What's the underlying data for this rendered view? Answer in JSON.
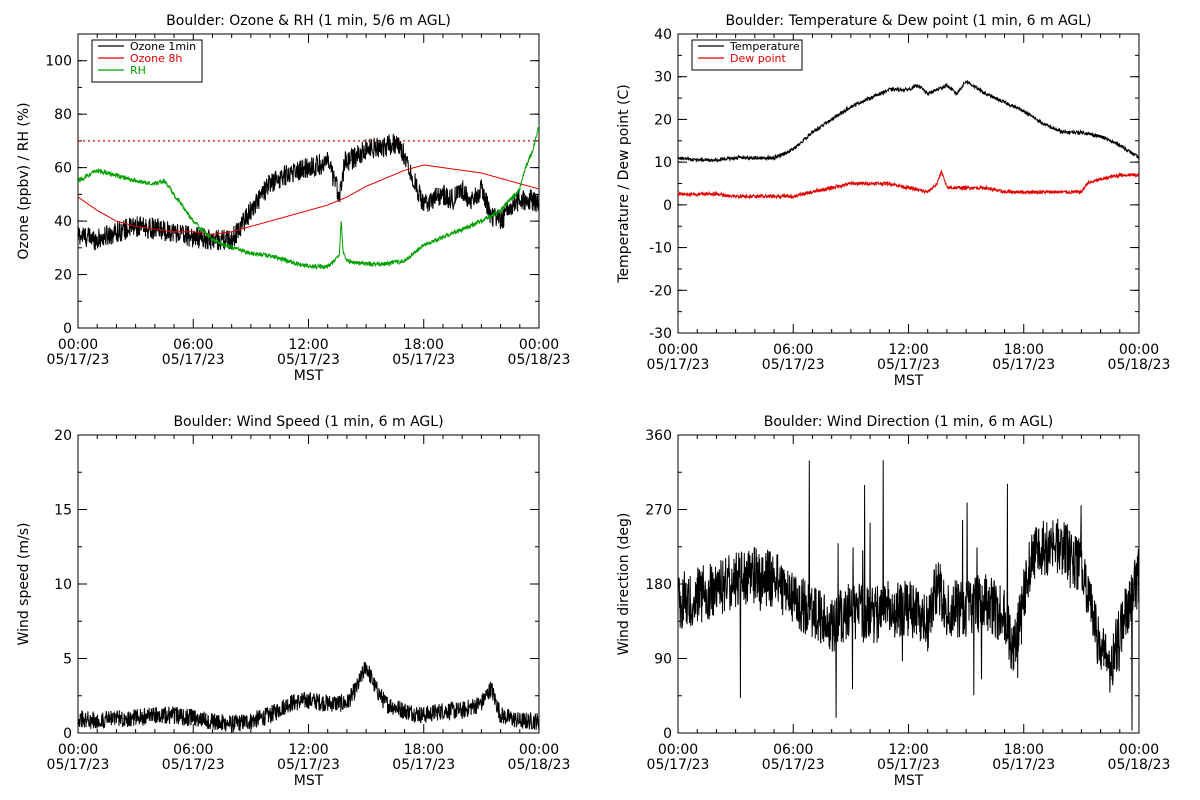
{
  "chart_data": [
    {
      "type": "line",
      "title": "Boulder: Ozone & RH (1 min, 5/6 m AGL)",
      "xlabel": "MST",
      "ylabel": "Ozone (ppbv) / RH (%)",
      "xlim_hours": [
        0,
        24
      ],
      "ylim": [
        0,
        110
      ],
      "yticks": [
        0,
        20,
        40,
        60,
        80,
        100
      ],
      "xtick_labels": [
        [
          "00:00",
          "05/17/23"
        ],
        [
          "06:00",
          "05/17/23"
        ],
        [
          "12:00",
          "05/17/23"
        ],
        [
          "18:00",
          "05/17/23"
        ],
        [
          "00:00",
          "05/18/23"
        ]
      ],
      "legend_position": "top-left",
      "reference_line": {
        "y": 70,
        "color": "#e00000",
        "style": "dotted"
      },
      "series": [
        {
          "name": "Ozone 1min",
          "color": "#000000",
          "noise": 4,
          "points": [
            [
              0,
              35
            ],
            [
              1,
              33
            ],
            [
              2,
              36
            ],
            [
              3,
              38
            ],
            [
              4,
              37
            ],
            [
              5,
              36
            ],
            [
              6,
              34
            ],
            [
              7,
              33
            ],
            [
              8,
              33
            ],
            [
              9,
              44
            ],
            [
              10,
              54
            ],
            [
              11,
              58
            ],
            [
              12,
              60
            ],
            [
              13,
              62
            ],
            [
              13.6,
              50
            ],
            [
              13.9,
              62
            ],
            [
              14.5,
              64
            ],
            [
              15,
              67
            ],
            [
              16,
              68
            ],
            [
              16.5,
              69
            ],
            [
              17,
              65
            ],
            [
              17.5,
              55
            ],
            [
              18,
              46
            ],
            [
              18.5,
              48
            ],
            [
              19,
              50
            ],
            [
              19.5,
              48
            ],
            [
              20,
              52
            ],
            [
              20.5,
              47
            ],
            [
              21,
              52
            ],
            [
              21.5,
              42
            ],
            [
              22,
              40
            ],
            [
              22.5,
              45
            ],
            [
              23,
              48
            ],
            [
              23.5,
              48
            ],
            [
              24,
              47
            ]
          ]
        },
        {
          "name": "Ozone 8h",
          "color": "#e00000",
          "noise": 0,
          "points": [
            [
              0,
              49
            ],
            [
              1,
              44
            ],
            [
              2,
              40
            ],
            [
              3,
              38
            ],
            [
              4,
              37
            ],
            [
              5,
              36
            ],
            [
              6,
              36
            ],
            [
              7,
              35
            ],
            [
              8,
              36
            ],
            [
              9,
              38
            ],
            [
              10,
              40
            ],
            [
              11,
              42
            ],
            [
              12,
              44
            ],
            [
              13,
              46
            ],
            [
              14,
              49
            ],
            [
              15,
              53
            ],
            [
              16,
              56
            ],
            [
              17,
              59
            ],
            [
              18,
              61
            ],
            [
              19,
              60
            ],
            [
              20,
              59
            ],
            [
              21,
              58
            ],
            [
              22,
              56
            ],
            [
              23,
              54
            ],
            [
              24,
              52
            ]
          ]
        },
        {
          "name": "RH",
          "color": "#00a000",
          "noise": 0.8,
          "points": [
            [
              0,
              55
            ],
            [
              0.5,
              57
            ],
            [
              1,
              59
            ],
            [
              2,
              57
            ],
            [
              3,
              55
            ],
            [
              4,
              54
            ],
            [
              4.5,
              55
            ],
            [
              5,
              50
            ],
            [
              6,
              40
            ],
            [
              7,
              33
            ],
            [
              8,
              30
            ],
            [
              9,
              28
            ],
            [
              10,
              27
            ],
            [
              11,
              25
            ],
            [
              12,
              23
            ],
            [
              13,
              23
            ],
            [
              13.6,
              27
            ],
            [
              13.7,
              40
            ],
            [
              13.8,
              29
            ],
            [
              14,
              25
            ],
            [
              15,
              24
            ],
            [
              16,
              24
            ],
            [
              17,
              25
            ],
            [
              17.5,
              28
            ],
            [
              18,
              31
            ],
            [
              19,
              34
            ],
            [
              20,
              37
            ],
            [
              21,
              40
            ],
            [
              21.5,
              42
            ],
            [
              22,
              44
            ],
            [
              22.5,
              48
            ],
            [
              23,
              52
            ],
            [
              23.3,
              60
            ],
            [
              23.7,
              67
            ],
            [
              24,
              76
            ]
          ]
        }
      ]
    },
    {
      "type": "line",
      "title": "Boulder: Temperature & Dew point (1 min, 6 m AGL)",
      "xlabel": "MST",
      "ylabel": "Temperature / Dew point (C)",
      "xlim_hours": [
        0,
        24
      ],
      "ylim": [
        -30,
        40
      ],
      "yticks": [
        -30,
        -20,
        -10,
        0,
        10,
        20,
        30,
        40
      ],
      "xtick_labels": [
        [
          "00:00",
          "05/17/23"
        ],
        [
          "06:00",
          "05/17/23"
        ],
        [
          "12:00",
          "05/17/23"
        ],
        [
          "18:00",
          "05/17/23"
        ],
        [
          "00:00",
          "05/18/23"
        ]
      ],
      "legend_position": "top-left",
      "series": [
        {
          "name": "Temperature",
          "color": "#000000",
          "noise": 0.4,
          "points": [
            [
              0,
              11
            ],
            [
              1,
              10.5
            ],
            [
              2,
              10.5
            ],
            [
              3,
              11
            ],
            [
              4,
              11
            ],
            [
              5,
              11
            ],
            [
              6,
              13
            ],
            [
              7,
              17
            ],
            [
              8,
              20
            ],
            [
              9,
              23
            ],
            [
              10,
              25
            ],
            [
              11,
              27
            ],
            [
              12,
              27
            ],
            [
              12.5,
              28
            ],
            [
              13,
              26
            ],
            [
              13.5,
              27
            ],
            [
              14,
              28
            ],
            [
              14.5,
              26
            ],
            [
              15,
              29
            ],
            [
              16,
              26
            ],
            [
              17,
              24
            ],
            [
              18,
              22
            ],
            [
              19,
              19
            ],
            [
              20,
              17
            ],
            [
              21,
              17
            ],
            [
              22,
              16
            ],
            [
              23,
              14
            ],
            [
              24,
              11
            ]
          ]
        },
        {
          "name": "Dew point",
          "color": "#e00000",
          "noise": 0.4,
          "points": [
            [
              0,
              2.5
            ],
            [
              1,
              2.5
            ],
            [
              2,
              2.5
            ],
            [
              3,
              2
            ],
            [
              4,
              2
            ],
            [
              5,
              2
            ],
            [
              6,
              2
            ],
            [
              7,
              3
            ],
            [
              8,
              4
            ],
            [
              9,
              5
            ],
            [
              10,
              5
            ],
            [
              11,
              5
            ],
            [
              12,
              4
            ],
            [
              13,
              3
            ],
            [
              13.5,
              5
            ],
            [
              13.7,
              8
            ],
            [
              14,
              4
            ],
            [
              15,
              4
            ],
            [
              16,
              4
            ],
            [
              17,
              3
            ],
            [
              18,
              3
            ],
            [
              19,
              3
            ],
            [
              20,
              3
            ],
            [
              21,
              3
            ],
            [
              21.3,
              5
            ],
            [
              22,
              6
            ],
            [
              23,
              7
            ],
            [
              24,
              7
            ]
          ]
        }
      ]
    },
    {
      "type": "line",
      "title": "Boulder: Wind Speed (1 min, 6 m AGL)",
      "xlabel": "MST",
      "ylabel": "Wind speed (m/s)",
      "xlim_hours": [
        0,
        24
      ],
      "ylim": [
        0,
        20
      ],
      "yticks": [
        0,
        5,
        10,
        15,
        20
      ],
      "xtick_labels": [
        [
          "00:00",
          "05/17/23"
        ],
        [
          "06:00",
          "05/17/23"
        ],
        [
          "12:00",
          "05/17/23"
        ],
        [
          "18:00",
          "05/17/23"
        ],
        [
          "00:00",
          "05/18/23"
        ]
      ],
      "series": [
        {
          "name": "",
          "color": "#000000",
          "noise": 0.6,
          "points": [
            [
              0,
              1
            ],
            [
              1,
              0.8
            ],
            [
              2,
              1
            ],
            [
              3,
              1
            ],
            [
              4,
              1.2
            ],
            [
              5,
              1.2
            ],
            [
              6,
              1
            ],
            [
              7,
              0.8
            ],
            [
              8,
              0.6
            ],
            [
              9,
              0.8
            ],
            [
              10,
              1.2
            ],
            [
              11,
              2
            ],
            [
              12,
              2.2
            ],
            [
              13,
              2
            ],
            [
              14,
              2
            ],
            [
              14.5,
              3
            ],
            [
              15,
              4.5
            ],
            [
              15.5,
              3
            ],
            [
              16,
              2
            ],
            [
              17,
              1.5
            ],
            [
              18,
              1.2
            ],
            [
              19,
              1.5
            ],
            [
              20,
              1.5
            ],
            [
              21,
              2
            ],
            [
              21.5,
              3
            ],
            [
              22,
              1.2
            ],
            [
              23,
              0.8
            ],
            [
              24,
              0.8
            ]
          ]
        }
      ]
    },
    {
      "type": "line",
      "title": "Boulder: Wind Direction (1 min, 6 m AGL)",
      "xlabel": "MST",
      "ylabel": "Wind direction (deg)",
      "xlim_hours": [
        0,
        24
      ],
      "ylim": [
        0,
        360
      ],
      "yticks": [
        0,
        90,
        180,
        270,
        360
      ],
      "xtick_labels": [
        [
          "00:00",
          "05/17/23"
        ],
        [
          "06:00",
          "05/17/23"
        ],
        [
          "12:00",
          "05/17/23"
        ],
        [
          "18:00",
          "05/17/23"
        ],
        [
          "00:00",
          "05/18/23"
        ]
      ],
      "series": [
        {
          "name": "",
          "color": "#000000",
          "noise": 35,
          "points": [
            [
              0,
              160
            ],
            [
              1,
              165
            ],
            [
              2,
              175
            ],
            [
              3,
              185
            ],
            [
              4,
              190
            ],
            [
              5,
              185
            ],
            [
              6,
              160
            ],
            [
              7,
              150
            ],
            [
              8,
              130
            ],
            [
              9,
              150
            ],
            [
              10,
              140
            ],
            [
              11,
              150
            ],
            [
              12,
              150
            ],
            [
              13,
              130
            ],
            [
              13.5,
              180
            ],
            [
              14,
              150
            ],
            [
              15,
              150
            ],
            [
              16,
              160
            ],
            [
              17,
              140
            ],
            [
              17.5,
              100
            ],
            [
              18,
              170
            ],
            [
              18.5,
              220
            ],
            [
              19,
              225
            ],
            [
              20,
              225
            ],
            [
              21,
              200
            ],
            [
              22,
              100
            ],
            [
              22.5,
              80
            ],
            [
              23,
              120
            ],
            [
              24,
              190
            ]
          ]
        }
      ]
    }
  ]
}
